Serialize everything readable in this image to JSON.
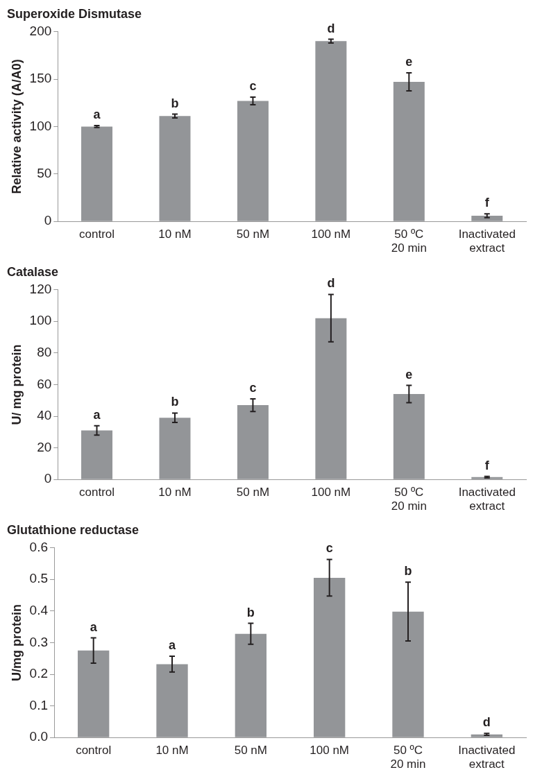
{
  "chart_data": [
    {
      "type": "bar",
      "title": "Superoxide Dismutase",
      "ylabel": "Relative activity (A/A0)",
      "categories": [
        "control",
        "10 nM",
        "50 nM",
        "100 nM",
        "50 ºC\n20 min",
        "Inactivated\nextract"
      ],
      "values": [
        100,
        111,
        127,
        190,
        147,
        6
      ],
      "errors": [
        1,
        2,
        4,
        2,
        9.5,
        2
      ],
      "color": "#939598",
      "ylim": [
        0,
        200
      ],
      "yticks": [
        0,
        50,
        100,
        150,
        200
      ],
      "grid": false,
      "annotations": [
        {
          "text": "a",
          "x": "control",
          "y": 100
        },
        {
          "text": "b",
          "x": "10 nM",
          "y": 111
        },
        {
          "text": "c",
          "x": "50 nM",
          "y": 127
        },
        {
          "text": "d",
          "x": "100 nM",
          "y": 190
        },
        {
          "text": "e",
          "x": "50 ºC\n20 min",
          "y": 147
        },
        {
          "text": "f",
          "x": "Inactivated\nextract",
          "y": 6
        }
      ]
    },
    {
      "type": "bar",
      "title": "Catalase",
      "ylabel": "U/ mg protein",
      "categories": [
        "control",
        "10 nM",
        "50 nM",
        "100 nM",
        "50 ºC\n20 min",
        "Inactivated\nextract"
      ],
      "values": [
        31,
        39,
        47,
        102,
        54,
        1.5
      ],
      "errors": [
        3,
        3,
        4,
        15,
        5.5,
        0.5
      ],
      "color": "#939598",
      "ylim": [
        0,
        120
      ],
      "yticks": [
        0,
        20,
        40,
        60,
        80,
        100,
        120
      ],
      "grid": false,
      "annotations": [
        {
          "text": "a",
          "x": "control",
          "y": 31
        },
        {
          "text": "b",
          "x": "10 nM",
          "y": 39
        },
        {
          "text": "c",
          "x": "50 nM",
          "y": 47
        },
        {
          "text": "d",
          "x": "100 nM",
          "y": 102
        },
        {
          "text": "e",
          "x": "50 ºC\n20 min",
          "y": 54
        },
        {
          "text": "f",
          "x": "Inactivated\nextract",
          "y": 1.5
        }
      ]
    },
    {
      "type": "bar",
      "title": "Glutathione reductase",
      "ylabel": "U/mg protein",
      "categories": [
        "control",
        "10 nM",
        "50 nM",
        "100 nM",
        "50 ºC\n20 min",
        "Inactivated\nextract"
      ],
      "values": [
        0.275,
        0.232,
        0.328,
        0.505,
        0.398,
        0.01
      ],
      "errors": [
        0.04,
        0.025,
        0.033,
        0.058,
        0.093,
        0.003
      ],
      "color": "#939598",
      "ylim": [
        0,
        0.6
      ],
      "yticks": [
        {
          "value": 0,
          "label": "0.0"
        },
        0.1,
        0.2,
        0.3,
        0.4,
        0.5,
        0.6
      ],
      "grid": false,
      "annotations": [
        {
          "text": "a",
          "x": "control",
          "y": 0.275
        },
        {
          "text": "a",
          "x": "10 nM",
          "y": 0.232
        },
        {
          "text": "b",
          "x": "50 nM",
          "y": 0.328
        },
        {
          "text": "c",
          "x": "100 nM",
          "y": 0.505
        },
        {
          "text": "b",
          "x": "50 ºC\n20 min",
          "y": 0.398
        },
        {
          "text": "d",
          "x": "Inactivated\nextract",
          "y": 0.01
        }
      ]
    }
  ]
}
